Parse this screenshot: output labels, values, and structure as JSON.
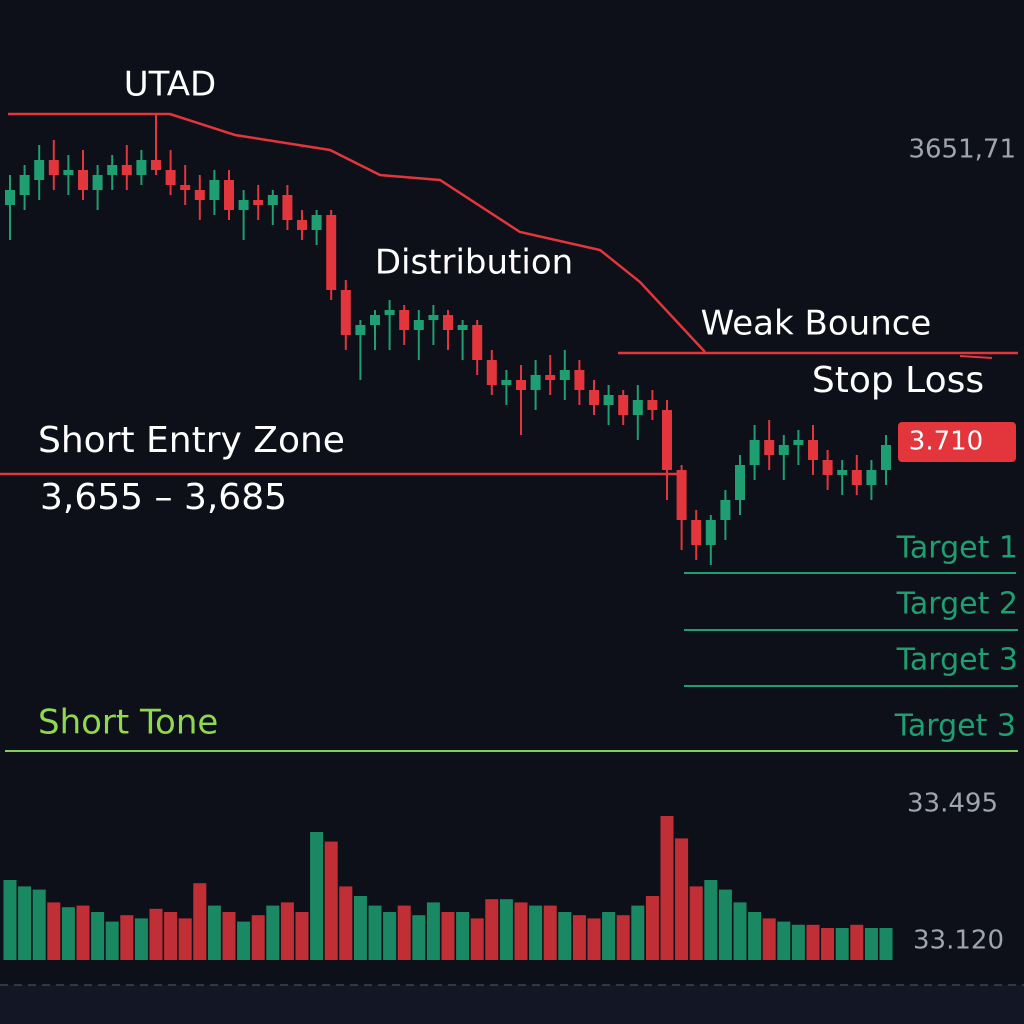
{
  "chart_data": {
    "type": "candlestick",
    "up_color": "#1f9e72",
    "down_color": "#e2353c",
    "ylim": [
      3640,
      3740
    ],
    "open": [
      3719,
      3721,
      3724,
      3728,
      3725,
      3726,
      3722,
      3725,
      3727,
      3725,
      3728,
      3726,
      3723,
      3722,
      3720,
      3724,
      3718,
      3720,
      3719,
      3721,
      3716,
      3714,
      3717,
      3702,
      3693,
      3695,
      3697,
      3698,
      3694,
      3696,
      3697,
      3694,
      3695,
      3688,
      3683,
      3684,
      3682,
      3685,
      3684,
      3686,
      3682,
      3679,
      3681,
      3677,
      3680,
      3678,
      3666,
      3656,
      3651,
      3656,
      3660,
      3667,
      3672,
      3669,
      3671,
      3672,
      3668,
      3665,
      3666,
      3663,
      3666
    ],
    "high": [
      3725,
      3727,
      3731,
      3732,
      3729,
      3730,
      3727,
      3729,
      3731,
      3730,
      3737,
      3730,
      3727,
      3725,
      3726,
      3726,
      3722,
      3723,
      3722,
      3723,
      3718,
      3718,
      3718,
      3704,
      3696,
      3698,
      3700,
      3699,
      3698,
      3699,
      3698,
      3696,
      3696,
      3690,
      3686,
      3687,
      3688,
      3689,
      3690,
      3688,
      3684,
      3683,
      3682,
      3683,
      3682,
      3680,
      3667,
      3658,
      3657,
      3662,
      3669,
      3675,
      3676,
      3673,
      3674,
      3675,
      3670,
      3668,
      3669,
      3668,
      3673
    ],
    "low": [
      3712,
      3718,
      3720,
      3722,
      3721,
      3720,
      3718,
      3722,
      3722,
      3723,
      3725,
      3721,
      3719,
      3716,
      3717,
      3716,
      3712,
      3716,
      3715,
      3714,
      3712,
      3711,
      3700,
      3690,
      3684,
      3690,
      3690,
      3691,
      3688,
      3691,
      3690,
      3688,
      3685,
      3681,
      3679,
      3673,
      3678,
      3681,
      3680,
      3679,
      3677,
      3675,
      3675,
      3672,
      3676,
      3660,
      3650,
      3648,
      3647,
      3652,
      3657,
      3664,
      3666,
      3664,
      3667,
      3665,
      3662,
      3661,
      3661,
      3660,
      3663
    ],
    "close": [
      3722,
      3725,
      3728,
      3725,
      3726,
      3722,
      3725,
      3727,
      3725,
      3728,
      3726,
      3723,
      3722,
      3720,
      3724,
      3718,
      3720,
      3719,
      3721,
      3716,
      3714,
      3717,
      3702,
      3693,
      3695,
      3697,
      3698,
      3694,
      3696,
      3697,
      3694,
      3695,
      3688,
      3683,
      3684,
      3682,
      3685,
      3684,
      3686,
      3682,
      3679,
      3681,
      3677,
      3680,
      3678,
      3666,
      3656,
      3651,
      3656,
      3660,
      3667,
      3672,
      3669,
      3671,
      3672,
      3668,
      3665,
      3666,
      3663,
      3666,
      3671
    ],
    "volume": {
      "ylim": [
        0,
        100
      ],
      "values": [
        50,
        46,
        44,
        36,
        33,
        34,
        30,
        24,
        28,
        26,
        32,
        30,
        26,
        48,
        34,
        30,
        24,
        28,
        34,
        36,
        30,
        80,
        74,
        46,
        40,
        34,
        30,
        34,
        28,
        36,
        30,
        30,
        26,
        38,
        38,
        36,
        34,
        34,
        30,
        28,
        26,
        30,
        28,
        34,
        40,
        90,
        76,
        46,
        50,
        44,
        36,
        30,
        26,
        24,
        22,
        22,
        20,
        20,
        22,
        20,
        20
      ]
    },
    "annotations": {
      "utad": "UTAD",
      "distribution": "Distribution",
      "weak_bounce": "Weak Bounce",
      "stop_loss": "Stop Loss",
      "short_entry_zone": "Short Entry Zone",
      "entry_range": "3,655 – 3,685",
      "short_tone": "Short Tone",
      "target_1": "Target 1",
      "target_2": "Target 2",
      "target_3": "Target 3",
      "target_3b": "Target 3"
    },
    "price_labels": [
      "3651,71",
      "3.710",
      "33.495",
      "33.120"
    ]
  }
}
